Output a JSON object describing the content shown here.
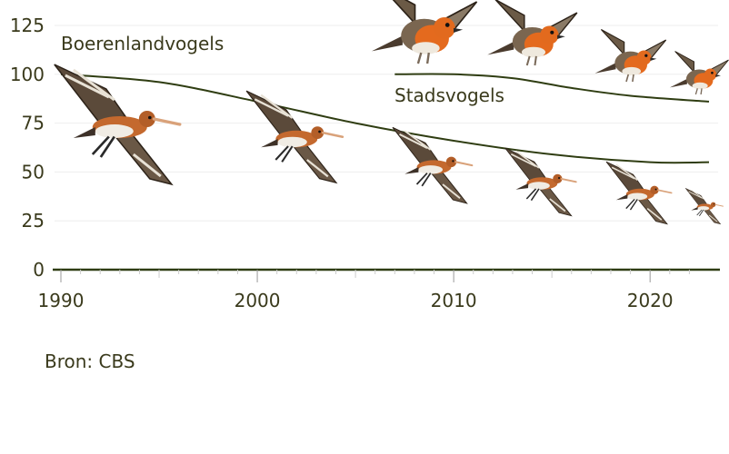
{
  "colors": {
    "line": "#2f3d12",
    "text": "#3a3a1c",
    "grid": "#eeeeee",
    "tick": "#cccccc"
  },
  "source": "Bron: CBS",
  "chart_data": {
    "type": "line",
    "title": "",
    "xlabel": "",
    "ylabel": "",
    "xlim": [
      1990,
      2023
    ],
    "ylim": [
      0,
      125
    ],
    "x_ticks": [
      1990,
      2000,
      2010,
      2020
    ],
    "y_ticks": [
      0,
      25,
      50,
      75,
      100,
      125
    ],
    "grid": true,
    "series": [
      {
        "name": "Boerenlandvogels",
        "icon": "black-tailed-godwit-icon",
        "x": [
          1990,
          1995,
          2000,
          2005,
          2010,
          2015,
          2020,
          2023
        ],
        "values": [
          100,
          96,
          86,
          75,
          66,
          59,
          55,
          55
        ]
      },
      {
        "name": "Stadsvogels",
        "icon": "robin-icon",
        "x": [
          2007,
          2010,
          2013,
          2016,
          2019,
          2023
        ],
        "values": [
          100,
          100,
          98,
          93,
          89,
          86
        ]
      }
    ]
  }
}
